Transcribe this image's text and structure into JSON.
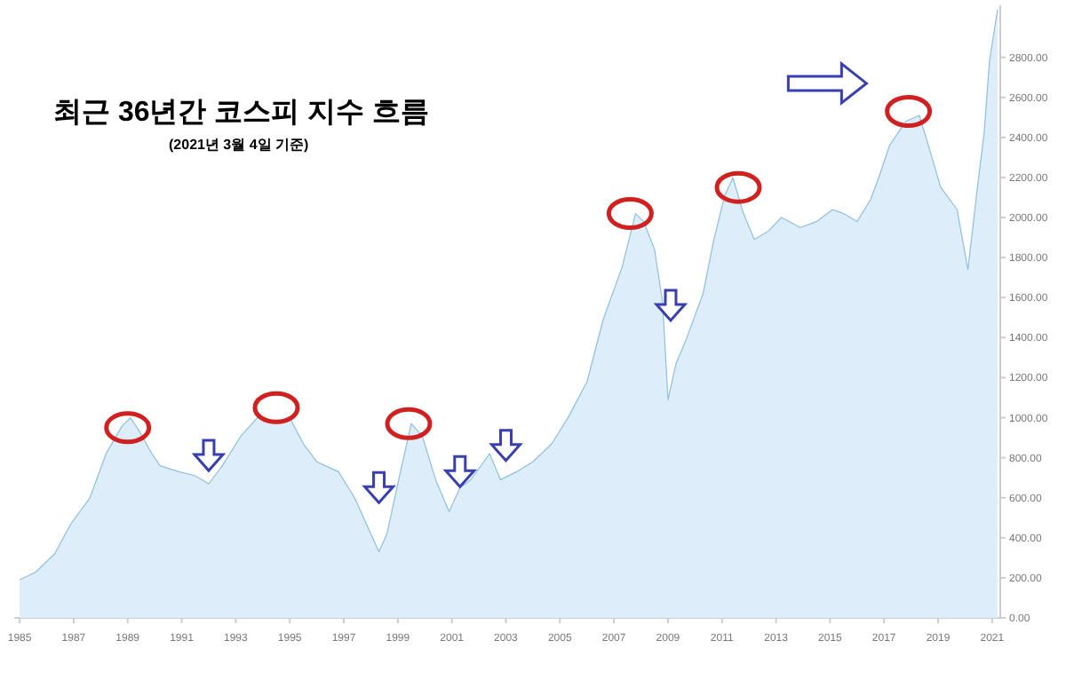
{
  "chart_data": {
    "type": "area",
    "title": "최근 36년간 코스피 지수 흐름",
    "subtitle": "(2021년 3월 4일 기준)",
    "x": [
      1985.0,
      1985.6,
      1986.3,
      1986.9,
      1987.6,
      1988.2,
      1988.8,
      1989.1,
      1989.4,
      1989.9,
      1990.2,
      1990.9,
      1991.5,
      1992.0,
      1992.5,
      1993.2,
      1993.8,
      1994.5,
      1995.0,
      1995.5,
      1996.0,
      1996.8,
      1997.4,
      1998.0,
      1998.3,
      1998.6,
      1999.1,
      1999.5,
      1999.9,
      2000.4,
      2000.9,
      2001.3,
      2001.7,
      2002.4,
      2002.8,
      2003.4,
      2004.0,
      2004.7,
      2005.3,
      2006.0,
      2006.6,
      2007.3,
      2007.8,
      2008.1,
      2008.5,
      2008.8,
      2009.0,
      2009.3,
      2009.7,
      2010.3,
      2010.7,
      2011.1,
      2011.4,
      2011.8,
      2012.2,
      2012.7,
      2013.2,
      2013.9,
      2014.5,
      2015.1,
      2015.5,
      2016.0,
      2016.5,
      2016.8,
      2017.2,
      2017.8,
      2018.3,
      2018.6,
      2019.1,
      2019.7,
      2020.1,
      2020.5,
      2020.7,
      2020.9,
      2021.2
    ],
    "series": [
      {
        "color": "#8cbfe0",
        "values": [
          190,
          230,
          320,
          470,
          600,
          820,
          960,
          1000,
          940,
          820,
          760,
          730,
          710,
          670,
          760,
          910,
          1000,
          970,
          1000,
          870,
          780,
          730,
          600,
          420,
          330,
          420,
          730,
          970,
          910,
          690,
          530,
          650,
          690,
          820,
          690,
          730,
          780,
          870,
          1000,
          1180,
          1490,
          1750,
          2020,
          1980,
          1840,
          1580,
          1090,
          1270,
          1400,
          1620,
          1890,
          2110,
          2200,
          2020,
          1890,
          1930,
          2000,
          1950,
          1980,
          2040,
          2020,
          1980,
          2090,
          2200,
          2360,
          2480,
          2510,
          2380,
          2150,
          2040,
          1740,
          2200,
          2420,
          2780,
          3040
        ]
      }
    ],
    "xlim": [
      1984.8,
      2021.3
    ],
    "ylim": [
      0,
      3060
    ],
    "xticks": [
      1985,
      1987,
      1989,
      1991,
      1993,
      1995,
      1997,
      1999,
      2001,
      2003,
      2005,
      2007,
      2009,
      2011,
      2013,
      2015,
      2017,
      2019,
      2021
    ],
    "yticks": [
      {
        "value": 0,
        "label": "0.00"
      },
      {
        "value": 200,
        "label": "200.00"
      },
      {
        "value": 400,
        "label": "400.00"
      },
      {
        "value": 600,
        "label": "600.00"
      },
      {
        "value": 800,
        "label": "800.00"
      },
      {
        "value": 1000,
        "label": "1000.00"
      },
      {
        "value": 1200,
        "label": "1200.00"
      },
      {
        "value": 1400,
        "label": "1400.00"
      },
      {
        "value": 1600,
        "label": "1600.00"
      },
      {
        "value": 1800,
        "label": "1800.00"
      },
      {
        "value": 2000,
        "label": "2000.00"
      },
      {
        "value": 2200,
        "label": "2200.00"
      },
      {
        "value": 2400,
        "label": "2400.00"
      },
      {
        "value": 2600,
        "label": "2600.00"
      },
      {
        "value": 2800,
        "label": "2800.00"
      }
    ],
    "grid": false
  }
}
